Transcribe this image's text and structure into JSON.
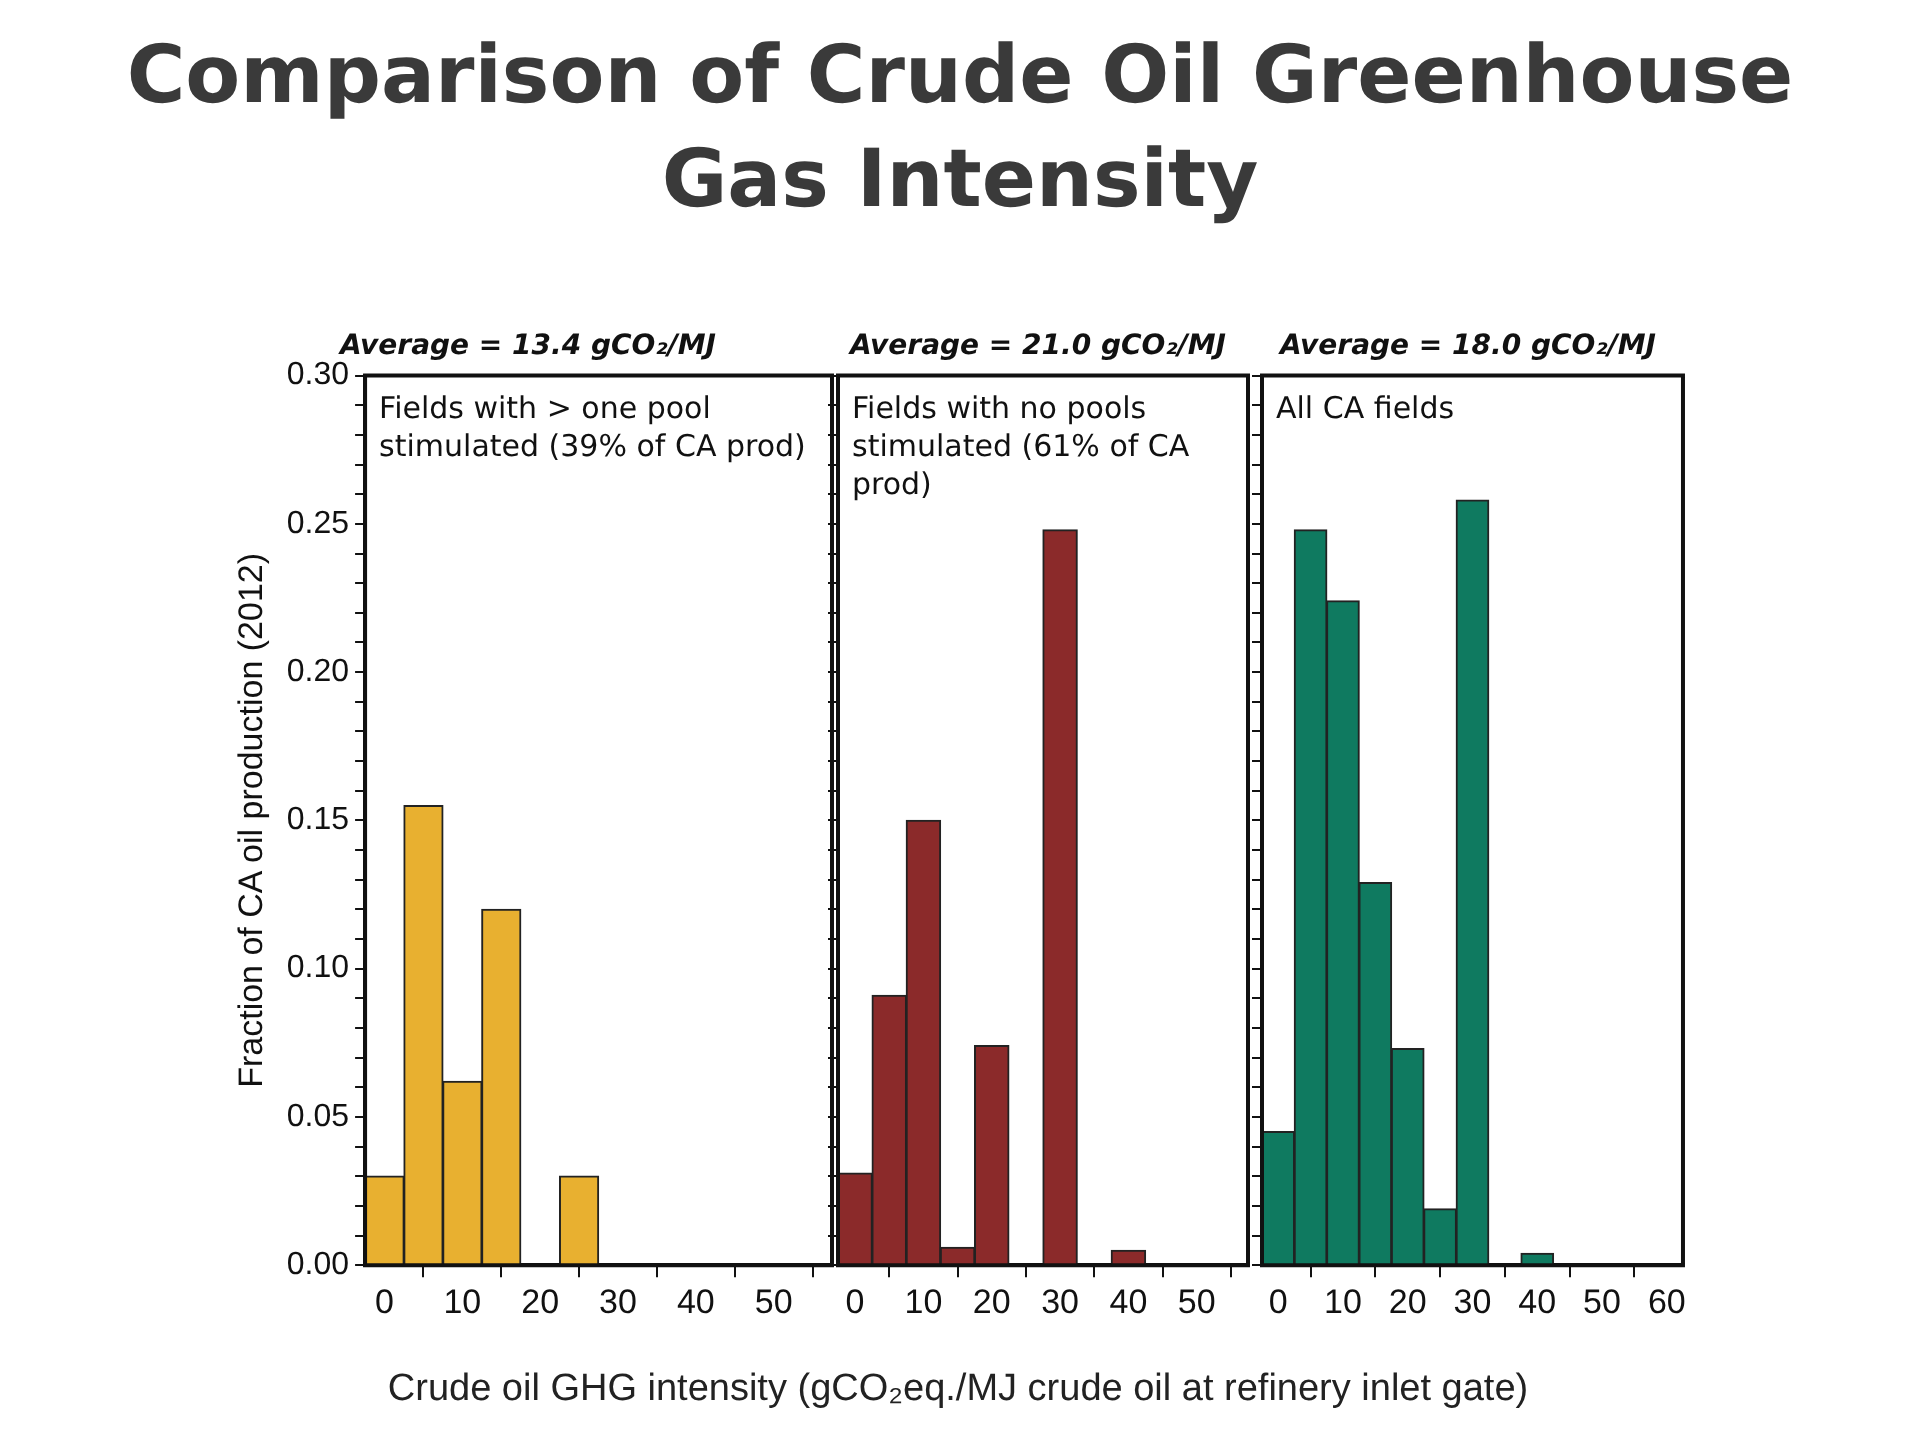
{
  "chart_data": [
    {
      "type": "other",
      "title": "Comparison of Crude Oil Greenhouse Gas Intensity"
    },
    {
      "type": "histogram",
      "title": "Average = 13.4 gCO₂/MJ",
      "ylabel": "Fraction of CA oil production (2012)",
      "annotations": [
        "Fields with > one pool stimulated (39% of CA prod)"
      ],
      "bins": [
        -2.5,
        2.5,
        7.5,
        12.5,
        17.5,
        22.5,
        27.5,
        32.5,
        37.5,
        42.5,
        47.5,
        52.5,
        57.5
      ],
      "values": [
        0.03,
        0.155,
        0.062,
        0.12,
        0,
        0.03,
        0,
        0,
        0,
        0,
        0,
        0
      ],
      "color": "#e8b030",
      "xlim": [
        -2.5,
        57.5
      ],
      "xticks": [
        0,
        10,
        20,
        30,
        40,
        50
      ],
      "ylim": [
        0,
        0.3
      ],
      "yticks": [
        {
          "value": 0,
          "label": "0.00"
        },
        {
          "value": 0.01,
          "label": null
        },
        {
          "value": 0.02,
          "label": null
        },
        {
          "value": 0.03,
          "label": null
        },
        {
          "value": 0.04,
          "label": null
        },
        {
          "value": 0.05,
          "label": "0.05"
        },
        {
          "value": 0.06,
          "label": null
        },
        {
          "value": 0.07,
          "label": null
        },
        {
          "value": 0.08,
          "label": null
        },
        {
          "value": 0.09,
          "label": null
        },
        {
          "value": 0.1,
          "label": "0.10"
        },
        {
          "value": 0.11,
          "label": null
        },
        {
          "value": 0.12,
          "label": null
        },
        {
          "value": 0.13,
          "label": null
        },
        {
          "value": 0.14,
          "label": null
        },
        {
          "value": 0.15,
          "label": "0.15"
        },
        {
          "value": 0.16,
          "label": null
        },
        {
          "value": 0.17,
          "label": null
        },
        {
          "value": 0.18,
          "label": null
        },
        {
          "value": 0.19,
          "label": null
        },
        {
          "value": 0.2,
          "label": "0.20"
        },
        {
          "value": 0.21,
          "label": null
        },
        {
          "value": 0.22,
          "label": null
        },
        {
          "value": 0.23,
          "label": null
        },
        {
          "value": 0.24,
          "label": null
        },
        {
          "value": 0.25,
          "label": "0.25"
        },
        {
          "value": 0.26,
          "label": null
        },
        {
          "value": 0.27,
          "label": null
        },
        {
          "value": 0.28,
          "label": null
        },
        {
          "value": 0.29,
          "label": null
        },
        {
          "value": 0.3,
          "label": "0.30"
        }
      ]
    },
    {
      "type": "histogram",
      "title": "Average = 21.0 gCO₂/MJ",
      "xlabel": "Crude oil GHG intensity (gCO₂eq./MJ crude oil at refinery inlet gate)",
      "annotations": [
        "Fields with no pools stimulated (61% of CA prod)"
      ],
      "tick_labels": "x",
      "bins": [
        -2.5,
        2.5,
        7.5,
        12.5,
        17.5,
        22.5,
        27.5,
        32.5,
        37.5,
        42.5,
        47.5,
        52.5,
        57.5
      ],
      "values": [
        0.031,
        0.091,
        0.15,
        0.006,
        0.074,
        0,
        0.248,
        0,
        0.005,
        0,
        0,
        0
      ],
      "color": "#8b2a2a",
      "xlim": [
        -2.5,
        57.5
      ],
      "xticks": [
        0,
        10,
        20,
        30,
        40,
        50
      ],
      "ylim": [
        0,
        0.3
      ],
      "yticks": [
        0,
        0.01,
        0.02,
        0.03,
        0.04,
        0.05,
        0.06,
        0.07,
        0.08,
        0.09,
        0.1,
        0.11,
        0.12,
        0.13,
        0.14,
        0.15,
        0.16,
        0.17,
        0.18,
        0.19,
        0.2,
        0.21,
        0.22,
        0.23,
        0.24,
        0.25,
        0.26,
        0.27,
        0.28,
        0.29,
        0.3
      ]
    },
    {
      "type": "histogram",
      "title": "Average = 18.0 gCO₂/MJ",
      "annotations": [
        "All CA fields"
      ],
      "tick_labels": "x",
      "bins": [
        -2.5,
        2.5,
        7.5,
        12.5,
        17.5,
        22.5,
        27.5,
        32.5,
        37.5,
        42.5,
        47.5,
        52.5,
        57.5,
        62.5
      ],
      "values": [
        0.045,
        0.248,
        0.224,
        0.129,
        0.073,
        0.019,
        0.258,
        0,
        0.004,
        0,
        0,
        0,
        0
      ],
      "color": "#0f7a60",
      "xlim": [
        -2.5,
        62.5
      ],
      "xticks": [
        0,
        10,
        20,
        30,
        40,
        50,
        60
      ],
      "ylim": [
        0,
        0.3
      ],
      "yticks": [
        0,
        0.01,
        0.02,
        0.03,
        0.04,
        0.05,
        0.06,
        0.07,
        0.08,
        0.09,
        0.1,
        0.11,
        0.12,
        0.13,
        0.14,
        0.15,
        0.16,
        0.17,
        0.18,
        0.19,
        0.2,
        0.21,
        0.22,
        0.23,
        0.24,
        0.25,
        0.26,
        0.27,
        0.28,
        0.29,
        0.3
      ]
    }
  ]
}
